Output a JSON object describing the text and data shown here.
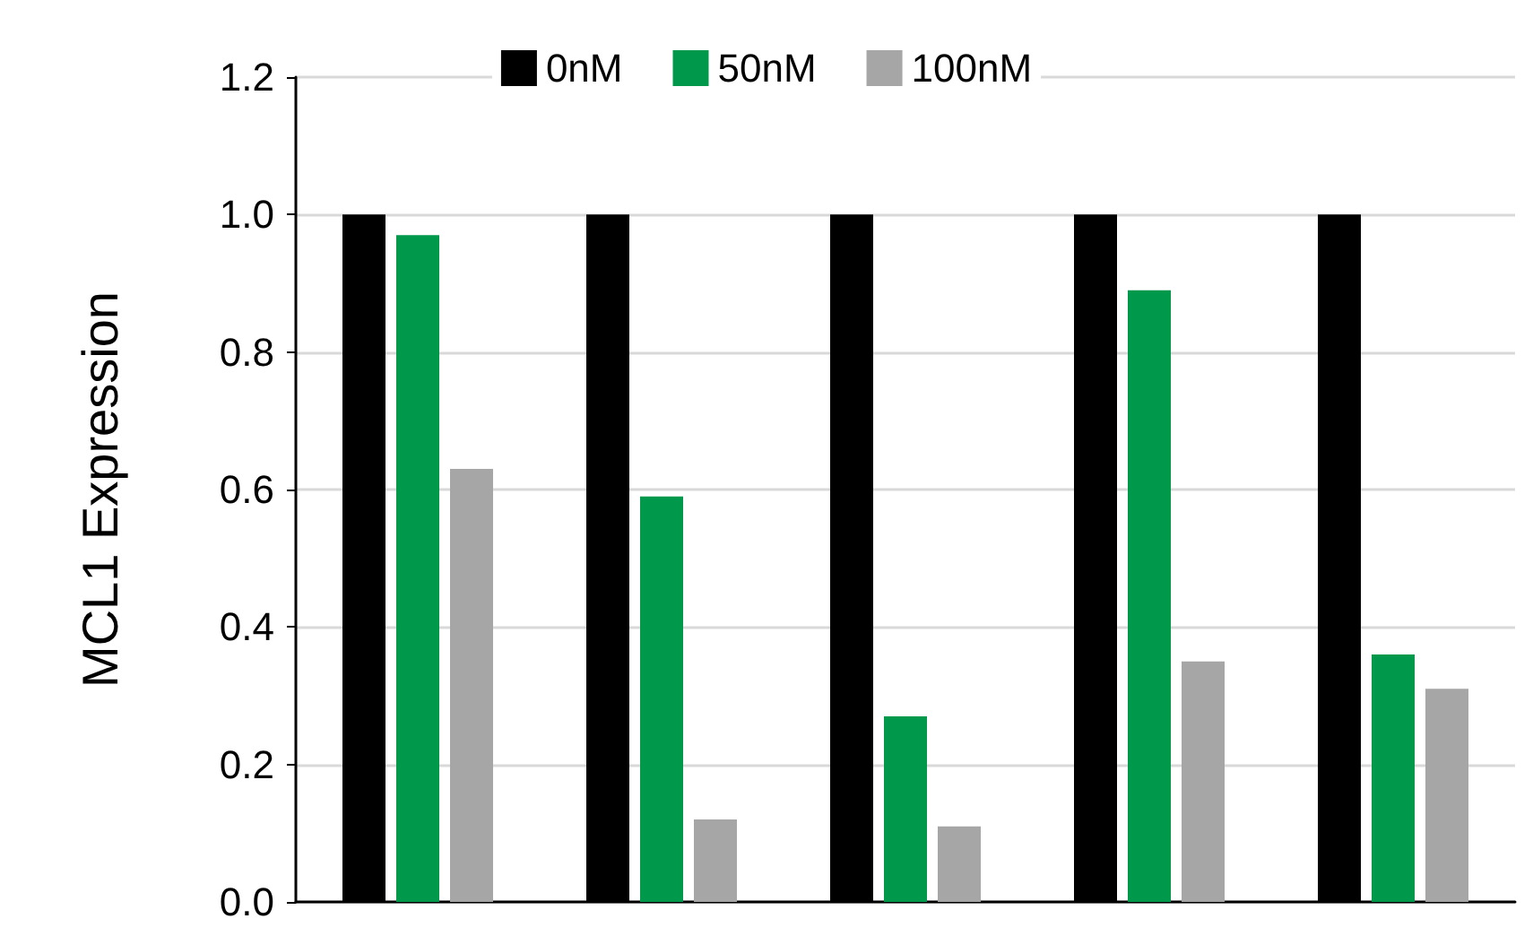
{
  "chart_data": {
    "type": "bar",
    "ylabel": "MCL1 Expression",
    "categories": [
      null,
      null,
      null,
      null,
      null
    ],
    "series": [
      {
        "name": "0nM",
        "color": "#000000",
        "values": [
          1.0,
          1.0,
          1.0,
          1.0,
          1.0
        ]
      },
      {
        "name": "50nM",
        "color": "#00994c",
        "values": [
          0.97,
          0.59,
          0.27,
          0.89,
          0.36
        ]
      },
      {
        "name": "100nM",
        "color": "#a6a6a6",
        "values": [
          0.63,
          0.12,
          0.11,
          0.35,
          0.31
        ]
      }
    ],
    "ylim": [
      0,
      1.2
    ],
    "yticks": [
      {
        "value": 0,
        "label": "0.0"
      },
      0.2,
      0.4,
      0.6,
      0.8,
      {
        "value": 1,
        "label": "1.0"
      },
      1.2
    ],
    "grid": "y",
    "legend": "top"
  }
}
